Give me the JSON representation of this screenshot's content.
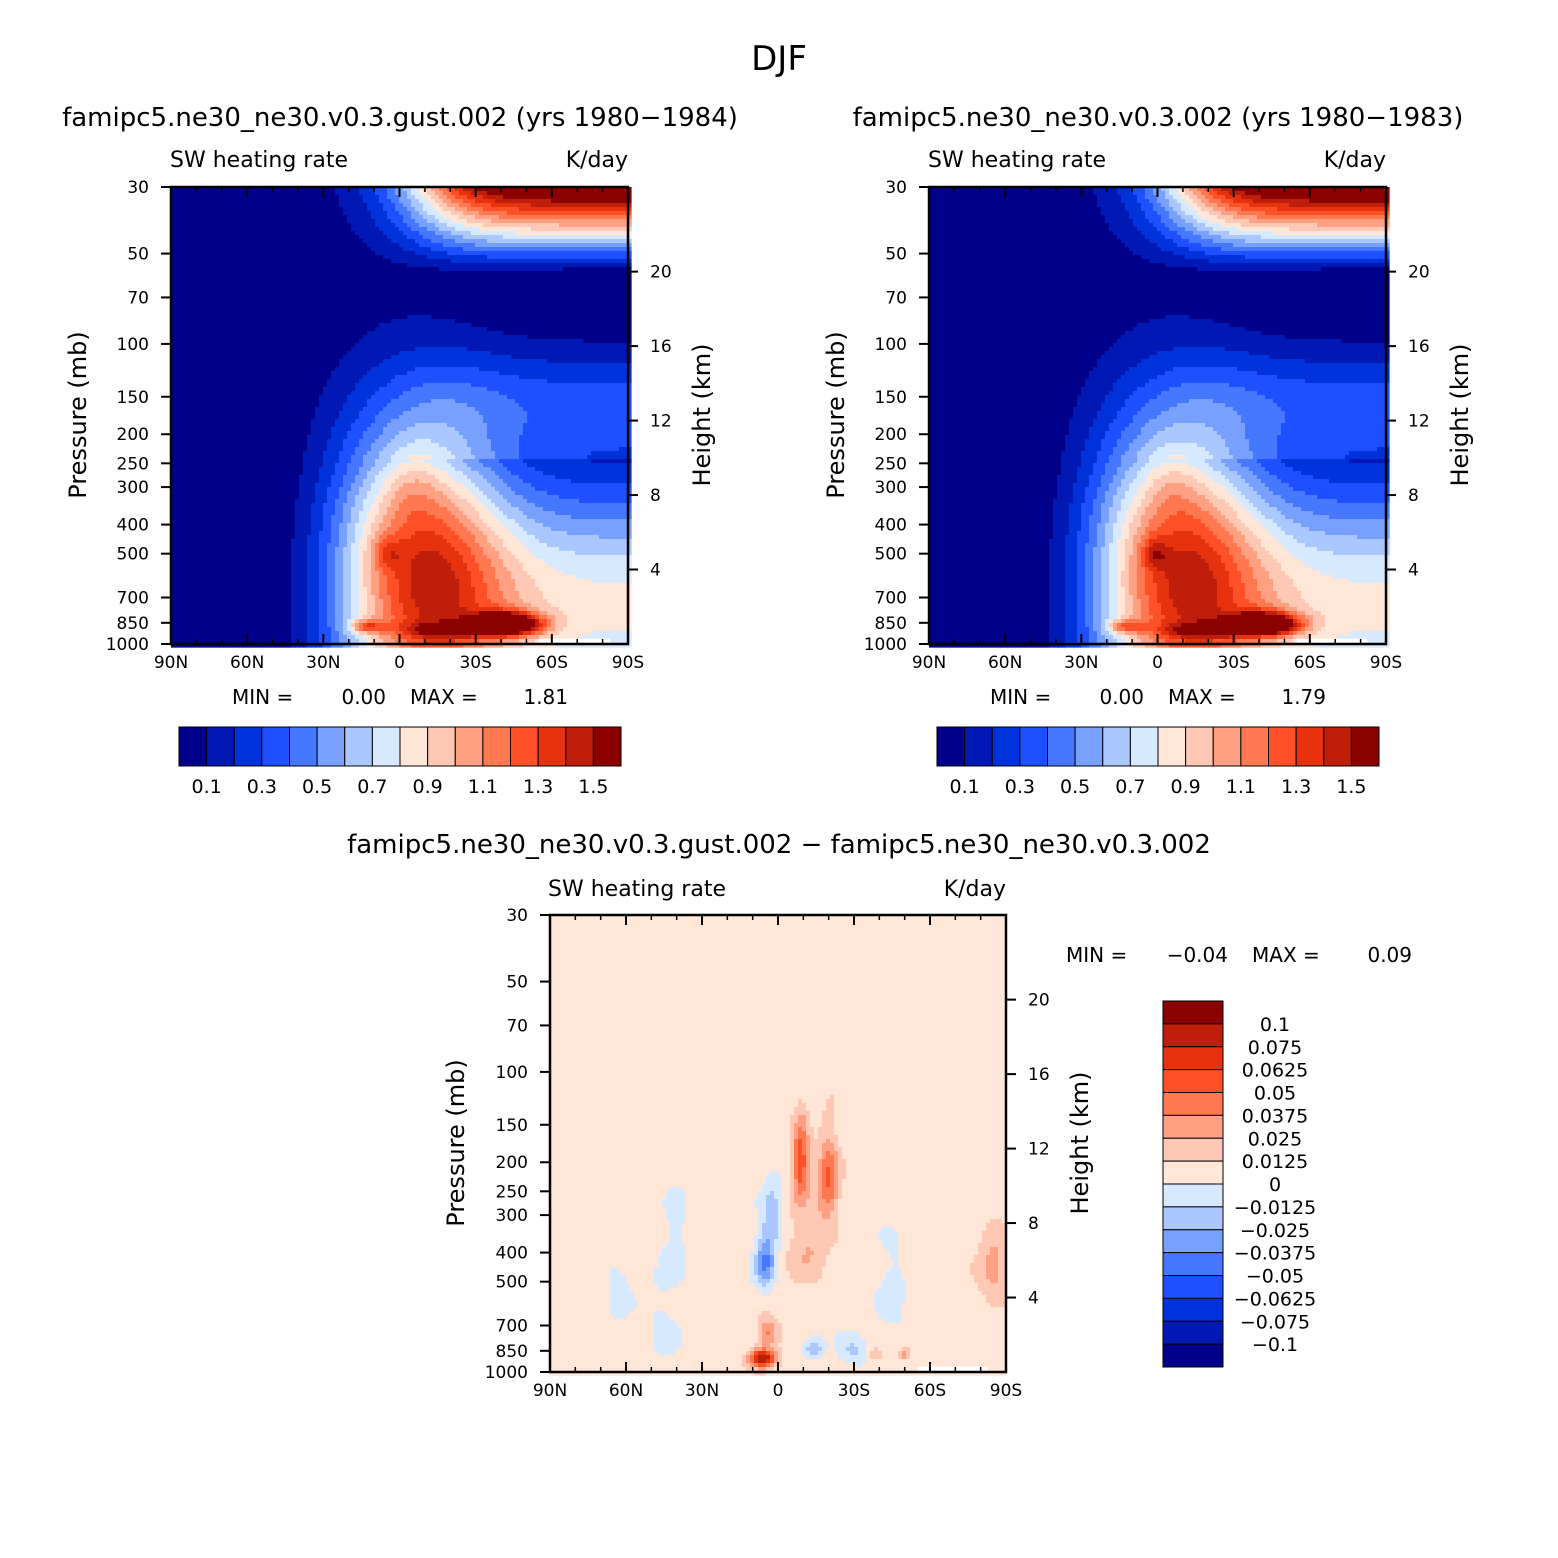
{
  "figure": {
    "title": "DJF"
  },
  "colors": {
    "seq": [
      "#00008b",
      "#0019b4",
      "#0032dc",
      "#1e50ff",
      "#4678ff",
      "#78a0ff",
      "#aac8ff",
      "#d7e9ff",
      "#ffe6d7",
      "#ffc8b4",
      "#ffa082",
      "#ff7850",
      "#ff5028",
      "#e6320f",
      "#be1e0a",
      "#8c0000"
    ],
    "diff": [
      "#00008b",
      "#0019b4",
      "#0032dc",
      "#1e50ff",
      "#4678ff",
      "#78a0ff",
      "#aac8ff",
      "#d7e9ff",
      "#ffe6d7",
      "#ffc8b4",
      "#ffa082",
      "#ff7850",
      "#ff5028",
      "#e6320f",
      "#be1e0a",
      "#8c0000"
    ]
  },
  "chart_data": [
    {
      "type": "heatmap",
      "id": "p1",
      "title": "famipc5.ne30_ne30.v0.3.gust.002 (yrs 1980−1984)",
      "left_label": "SW heating rate",
      "right_label": "K/day",
      "ylabel": "Pressure (mb)",
      "ylabel_right": "Height (km)",
      "x_ticks": [
        "90N",
        "60N",
        "30N",
        "0",
        "30S",
        "60S",
        "90S"
      ],
      "x_values": [
        90,
        60,
        30,
        0,
        -30,
        -60,
        -90
      ],
      "y_ticks": [
        "30",
        "50",
        "70",
        "100",
        "150",
        "200",
        "250",
        "300",
        "400",
        "500",
        "700",
        "850",
        "1000"
      ],
      "y_values": [
        30,
        50,
        70,
        100,
        150,
        200,
        250,
        300,
        400,
        500,
        700,
        850,
        1000
      ],
      "height_ticks": [
        "20",
        "16",
        "12",
        "8",
        "4"
      ],
      "height_values": [
        20,
        16,
        12,
        8,
        4
      ],
      "min_label": "MIN =",
      "min_value": "0.00",
      "max_label": "MAX =",
      "max_value": "1.81",
      "colorbar_labels": [
        "0.1",
        "0.3",
        "0.5",
        "0.7",
        "0.9",
        "1.1",
        "1.3",
        "1.5"
      ],
      "levels": [
        0.1,
        0.2,
        0.3,
        0.4,
        0.5,
        0.6,
        0.7,
        0.8,
        0.9,
        1.0,
        1.1,
        1.2,
        1.3,
        1.4,
        1.5
      ],
      "blobs": [
        {
          "lat": -42,
          "p": 860,
          "amp": 1.15,
          "slat": 14,
          "sp": 75
        },
        {
          "lat": -18,
          "p": 900,
          "amp": 0.35,
          "slat": 16,
          "sp": 50
        },
        {
          "lat": 13,
          "p": 875,
          "amp": 0.45,
          "slat": 7,
          "sp": 45
        },
        {
          "lat": 5,
          "p": 500,
          "amp": 0.22,
          "slat": 6,
          "sp": 60
        },
        {
          "lat": -5,
          "p": 300,
          "amp": 0.1,
          "slat": 10,
          "sp": 80
        }
      ]
    },
    {
      "type": "heatmap",
      "id": "p2",
      "title": "famipc5.ne30_ne30.v0.3.002 (yrs 1980−1983)",
      "left_label": "SW heating rate",
      "right_label": "K/day",
      "ylabel": "Pressure (mb)",
      "ylabel_right": "Height (km)",
      "x_ticks": [
        "90N",
        "60N",
        "30N",
        "0",
        "30S",
        "60S",
        "90S"
      ],
      "x_values": [
        90,
        60,
        30,
        0,
        -30,
        -60,
        -90
      ],
      "y_ticks": [
        "30",
        "50",
        "70",
        "100",
        "150",
        "200",
        "250",
        "300",
        "400",
        "500",
        "700",
        "850",
        "1000"
      ],
      "y_values": [
        30,
        50,
        70,
        100,
        150,
        200,
        250,
        300,
        400,
        500,
        700,
        850,
        1000
      ],
      "height_ticks": [
        "20",
        "16",
        "12",
        "8",
        "4"
      ],
      "height_values": [
        20,
        16,
        12,
        8,
        4
      ],
      "min_label": "MIN =",
      "min_value": "0.00",
      "max_label": "MAX =",
      "max_value": "1.79",
      "colorbar_labels": [
        "0.1",
        "0.3",
        "0.5",
        "0.7",
        "0.9",
        "1.1",
        "1.3",
        "1.5"
      ],
      "levels": [
        0.1,
        0.2,
        0.3,
        0.4,
        0.5,
        0.6,
        0.7,
        0.8,
        0.9,
        1.0,
        1.1,
        1.2,
        1.3,
        1.4,
        1.5
      ],
      "blobs": [
        {
          "lat": -42,
          "p": 860,
          "amp": 1.12,
          "slat": 14,
          "sp": 75
        },
        {
          "lat": -18,
          "p": 900,
          "amp": 0.33,
          "slat": 16,
          "sp": 50
        },
        {
          "lat": 13,
          "p": 875,
          "amp": 0.42,
          "slat": 7,
          "sp": 45
        },
        {
          "lat": 1,
          "p": 500,
          "amp": 0.26,
          "slat": 5,
          "sp": 60
        },
        {
          "lat": -5,
          "p": 300,
          "amp": 0.08,
          "slat": 10,
          "sp": 80
        }
      ]
    },
    {
      "type": "heatmap",
      "id": "p3",
      "title": "famipc5.ne30_ne30.v0.3.gust.002 − famipc5.ne30_ne30.v0.3.002",
      "left_label": "SW heating rate",
      "right_label": "K/day",
      "ylabel": "Pressure (mb)",
      "ylabel_right": "Height (km)",
      "x_ticks": [
        "90N",
        "60N",
        "30N",
        "0",
        "30S",
        "60S",
        "90S"
      ],
      "x_values": [
        90,
        60,
        30,
        0,
        -30,
        -60,
        -90
      ],
      "y_ticks": [
        "30",
        "50",
        "70",
        "100",
        "150",
        "200",
        "250",
        "300",
        "400",
        "500",
        "700",
        "850",
        "1000"
      ],
      "y_values": [
        30,
        50,
        70,
        100,
        150,
        200,
        250,
        300,
        400,
        500,
        700,
        850,
        1000
      ],
      "height_ticks": [
        "20",
        "16",
        "12",
        "8",
        "4"
      ],
      "height_values": [
        20,
        16,
        12,
        8,
        4
      ],
      "min_label": "MIN =",
      "min_value": "−0.04",
      "max_label": "MAX =",
      "max_value": "0.09",
      "colorbar_labels": [
        "0.1",
        "0.075",
        "0.0625",
        "0.05",
        "0.0375",
        "0.025",
        "0.0125",
        "0",
        "−0.0125",
        "−0.025",
        "−0.0375",
        "−0.05",
        "−0.0625",
        "−0.075",
        "−0.1"
      ],
      "levels": [
        -0.1,
        -0.075,
        -0.0625,
        -0.05,
        -0.0375,
        -0.025,
        -0.0125,
        0,
        0.0125,
        0.025,
        0.0375,
        0.05,
        0.0625,
        0.075,
        0.1
      ],
      "blobs": [
        {
          "lat": 6,
          "p": 900,
          "amp": 0.085,
          "slat": 5,
          "sp": 60
        },
        {
          "lat": 4,
          "p": 740,
          "amp": 0.035,
          "slat": 4,
          "sp": 80
        },
        {
          "lat": -9,
          "p": 200,
          "amp": 0.055,
          "slat": 3,
          "sp": 60
        },
        {
          "lat": -20,
          "p": 230,
          "amp": 0.045,
          "slat": 4,
          "sp": 70
        },
        {
          "lat": -12,
          "p": 380,
          "amp": 0.02,
          "slat": 8,
          "sp": 120
        },
        {
          "lat": 5,
          "p": 430,
          "amp": -0.045,
          "slat": 4,
          "sp": 90
        },
        {
          "lat": 2,
          "p": 300,
          "amp": -0.025,
          "slat": 4,
          "sp": 80
        },
        {
          "lat": -14,
          "p": 830,
          "amp": -0.03,
          "slat": 4,
          "sp": 60
        },
        {
          "lat": -30,
          "p": 850,
          "amp": -0.02,
          "slat": 6,
          "sp": 100
        },
        {
          "lat": -38,
          "p": 880,
          "amp": 0.025,
          "slat": 3,
          "sp": 40
        },
        {
          "lat": -50,
          "p": 870,
          "amp": 0.03,
          "slat": 2,
          "sp": 40
        },
        {
          "lat": -85,
          "p": 450,
          "amp": 0.025,
          "slat": 6,
          "sp": 120
        },
        {
          "lat": 63,
          "p": 540,
          "amp": -0.012,
          "slat": 5,
          "sp": 150
        },
        {
          "lat": 40,
          "p": 350,
          "amp": -0.01,
          "slat": 5,
          "sp": 120
        },
        {
          "lat": -45,
          "p": 550,
          "amp": -0.012,
          "slat": 6,
          "sp": 200
        }
      ]
    }
  ]
}
